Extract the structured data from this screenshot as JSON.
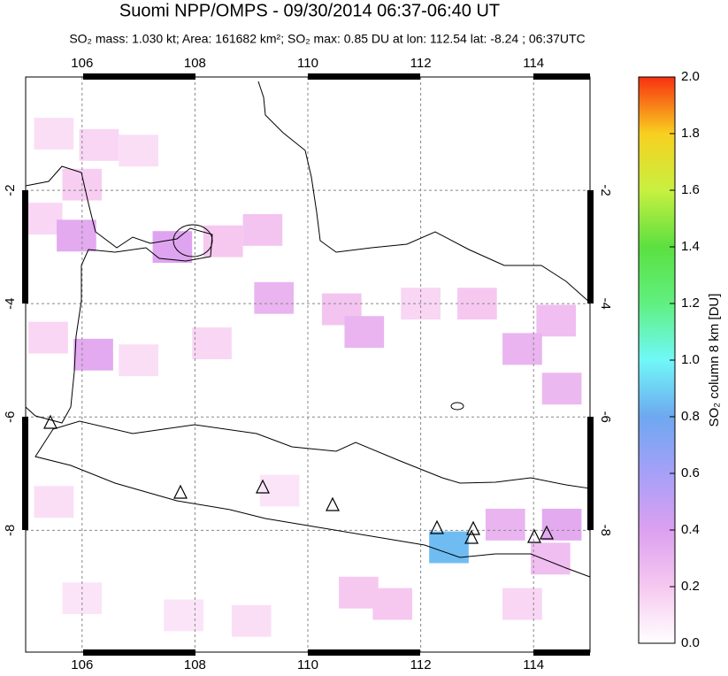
{
  "chart_data": {
    "type": "map",
    "title": "Suomi NPP/OMPS - 09/30/2014 06:37-06:40 UT",
    "subtitle": "SO₂ mass: 1.030 kt; Area: 161682 km²; SO₂ max: 0.85 DU at lon: 112.54 lat: -8.24 ; 06:37UTC",
    "xlim": [
      105,
      115
    ],
    "ylim": [
      -10.15,
      0
    ],
    "xticks": [
      106,
      108,
      110,
      112,
      114
    ],
    "yticks": [
      -2,
      -4,
      -6,
      -8
    ],
    "grid": true,
    "colorbar": {
      "label": "SO₂ column 8 km [DU]",
      "lim": [
        0,
        2
      ],
      "ticks": [
        {
          "value": 0,
          "label": "0.0"
        },
        0.2,
        0.4,
        0.6,
        0.8,
        {
          "value": 1,
          "label": "1.0"
        },
        1.2,
        1.4,
        1.6,
        1.8,
        {
          "value": 2,
          "label": "2.0"
        }
      ],
      "colorscale": [
        [
          0,
          "#ffffff"
        ],
        [
          0.2,
          "#f6c8f0"
        ],
        [
          0.4,
          "#dca0f0"
        ],
        [
          0.6,
          "#a6a0f8"
        ],
        [
          0.8,
          "#6ea8f0"
        ],
        [
          1.0,
          "#70f8f8"
        ],
        [
          1.2,
          "#60f080"
        ],
        [
          1.4,
          "#5ce040"
        ],
        [
          1.6,
          "#c8f040"
        ],
        [
          1.8,
          "#f8d020"
        ],
        [
          2.0,
          "#f83010"
        ]
      ]
    },
    "pixels": {
      "lon": [
        105.5,
        106.3,
        107.0,
        106.0,
        105.3,
        105.9,
        107.6,
        108.5,
        109.2,
        109.4,
        110.6,
        111.0,
        112.0,
        113.0,
        114.4,
        113.8,
        114.5,
        106.2,
        105.4,
        107.0,
        108.3,
        105.5,
        109.5,
        112.5,
        113.5,
        114.5,
        114.3,
        110.9,
        111.5,
        107.8,
        106.0,
        109.0,
        113.8
      ],
      "lat": [
        -1.0,
        -1.2,
        -1.3,
        -1.9,
        -2.5,
        -2.8,
        -3.0,
        -2.9,
        -2.7,
        -3.9,
        -4.1,
        -4.5,
        -4.0,
        -4.0,
        -4.3,
        -4.8,
        -5.5,
        -4.9,
        -4.6,
        -5.0,
        -4.7,
        -7.5,
        -7.3,
        -8.3,
        -7.9,
        -7.9,
        -8.5,
        -9.1,
        -9.3,
        -9.5,
        -9.2,
        -9.6,
        -9.3
      ],
      "values": [
        0.12,
        0.15,
        0.12,
        0.18,
        0.15,
        0.35,
        0.38,
        0.2,
        0.22,
        0.3,
        0.22,
        0.3,
        0.15,
        0.2,
        0.25,
        0.3,
        0.28,
        0.35,
        0.15,
        0.12,
        0.15,
        0.12,
        0.1,
        0.85,
        0.3,
        0.35,
        0.25,
        0.2,
        0.2,
        0.1,
        0.1,
        0.12,
        0.15
      ]
    }
  }
}
